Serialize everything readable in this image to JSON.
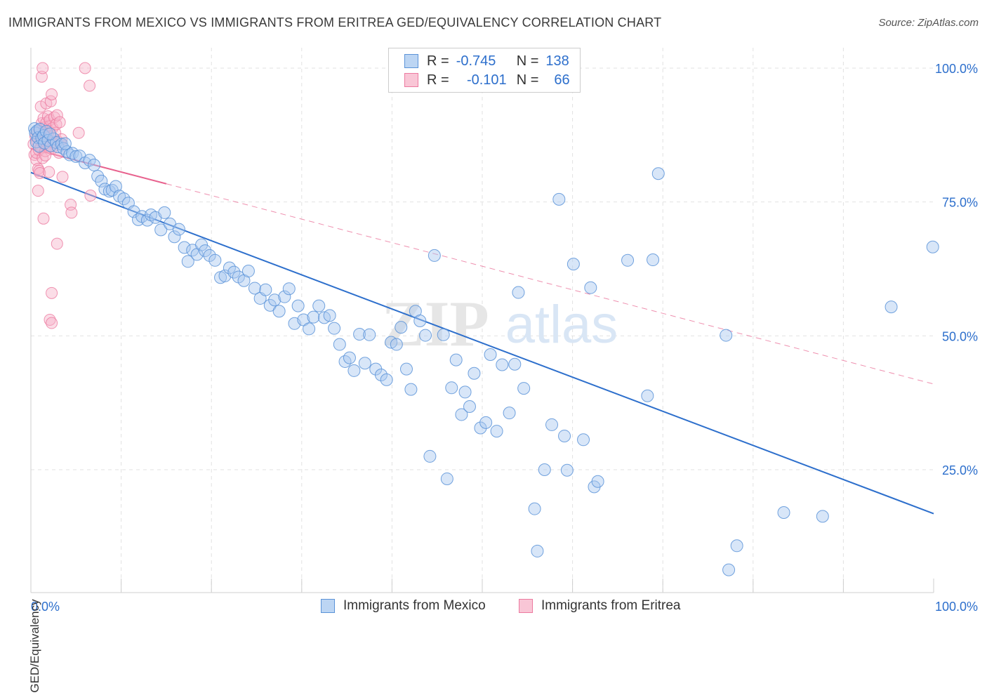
{
  "title": "IMMIGRANTS FROM MEXICO VS IMMIGRANTS FROM ERITREA GED/EQUIVALENCY CORRELATION CHART",
  "source": "Source: ZipAtlas.com",
  "watermark": {
    "zip": "ZIP",
    "atlas": "atlas"
  },
  "legend_top": {
    "r_label": "R =",
    "n_label": "N =",
    "rows": [
      {
        "name": "Immigrants from Mexico",
        "r": "-0.745",
        "n": "138"
      },
      {
        "name": "Immigrants from Eritrea",
        "r": "-0.101",
        "n": "66"
      }
    ]
  },
  "bottom_legend": [
    "Immigrants from Mexico",
    "Immigrants from Eritrea"
  ],
  "colors": {
    "mexico_fill": "#a9c8ef",
    "mexico_stroke": "#5b93d8",
    "mexico_line": "#2d6fcc",
    "eritrea_fill": "#f7b3c9",
    "eritrea_stroke": "#ec7aa0",
    "eritrea_line": "#e8628e",
    "axis_text": "#2d6fcc",
    "grid": "#e2e2e2"
  },
  "chart_data": {
    "type": "scatter",
    "title": "IMMIGRANTS FROM MEXICO VS IMMIGRANTS FROM ERITREA GED/EQUIVALENCY CORRELATION CHART",
    "xlabel": "",
    "ylabel": "GED/Equivalency",
    "xlim": [
      0,
      100
    ],
    "ylim": [
      0,
      102
    ],
    "x_tick_labels": [
      {
        "value": 0,
        "label": "0.0%"
      },
      {
        "value": 100,
        "label": "100.0%"
      }
    ],
    "y_tick_labels": [
      {
        "value": 100,
        "label": "100.0%"
      },
      {
        "value": 75,
        "label": "75.0%"
      },
      {
        "value": 50,
        "label": "50.0%"
      },
      {
        "value": 25,
        "label": "25.0%"
      }
    ],
    "x_minor_ticks": [
      0,
      10,
      20,
      30,
      40,
      50,
      60,
      70,
      80,
      90,
      100
    ],
    "grid": true,
    "legend_position": "top-center",
    "series": [
      {
        "name": "Immigrants from Mexico",
        "r": -0.745,
        "n": 138,
        "trend": {
          "x": [
            0,
            100
          ],
          "y": [
            80.5,
            16.8
          ],
          "style": "solid"
        },
        "points": [
          [
            0.4,
            88.7
          ],
          [
            0.5,
            87.9
          ],
          [
            0.6,
            86.2
          ],
          [
            0.7,
            88.3
          ],
          [
            0.8,
            87.0
          ],
          [
            0.9,
            85.4
          ],
          [
            1.0,
            88.6
          ],
          [
            1.2,
            86.9
          ],
          [
            1.4,
            87.4
          ],
          [
            1.5,
            86.0
          ],
          [
            1.7,
            88.2
          ],
          [
            1.9,
            86.5
          ],
          [
            2.2,
            85.5
          ],
          [
            2.5,
            86.8
          ],
          [
            2.8,
            86.1
          ],
          [
            3.0,
            85.3
          ],
          [
            3.4,
            85.8
          ],
          [
            3.6,
            85.0
          ],
          [
            4.0,
            84.4
          ],
          [
            4.3,
            83.8
          ],
          [
            4.6,
            84.1
          ],
          [
            5.0,
            83.5
          ],
          [
            5.4,
            83.6
          ],
          [
            6.0,
            82.3
          ],
          [
            6.5,
            82.8
          ],
          [
            7.0,
            81.9
          ],
          [
            7.4,
            79.8
          ],
          [
            7.8,
            78.9
          ],
          [
            8.2,
            77.4
          ],
          [
            8.7,
            77.0
          ],
          [
            9.0,
            77.2
          ],
          [
            9.4,
            77.9
          ],
          [
            9.8,
            76.1
          ],
          [
            10.3,
            75.6
          ],
          [
            10.8,
            74.8
          ],
          [
            11.4,
            73.2
          ],
          [
            11.9,
            71.7
          ],
          [
            12.3,
            72.3
          ],
          [
            12.9,
            71.6
          ],
          [
            13.3,
            72.6
          ],
          [
            13.8,
            72.1
          ],
          [
            14.4,
            69.8
          ],
          [
            14.8,
            73.0
          ],
          [
            15.4,
            70.9
          ],
          [
            15.9,
            68.5
          ],
          [
            16.4,
            69.9
          ],
          [
            17.0,
            66.5
          ],
          [
            17.4,
            63.9
          ],
          [
            17.9,
            66.0
          ],
          [
            18.4,
            65.2
          ],
          [
            18.9,
            67.0
          ],
          [
            19.3,
            65.9
          ],
          [
            19.8,
            65.0
          ],
          [
            20.4,
            64.1
          ],
          [
            21.0,
            60.9
          ],
          [
            21.5,
            61.2
          ],
          [
            22.0,
            62.7
          ],
          [
            22.5,
            61.9
          ],
          [
            23.0,
            61.0
          ],
          [
            23.6,
            60.3
          ],
          [
            24.1,
            62.1
          ],
          [
            24.8,
            58.9
          ],
          [
            25.4,
            57.0
          ],
          [
            26.0,
            58.6
          ],
          [
            26.5,
            55.7
          ],
          [
            27.0,
            56.7
          ],
          [
            27.5,
            54.6
          ],
          [
            28.1,
            57.3
          ],
          [
            28.6,
            58.8
          ],
          [
            29.2,
            52.3
          ],
          [
            29.6,
            55.6
          ],
          [
            30.2,
            53.0
          ],
          [
            30.8,
            51.3
          ],
          [
            31.3,
            53.5
          ],
          [
            31.9,
            55.6
          ],
          [
            32.5,
            53.4
          ],
          [
            33.1,
            53.8
          ],
          [
            33.6,
            51.4
          ],
          [
            34.2,
            48.4
          ],
          [
            34.8,
            45.2
          ],
          [
            35.3,
            45.9
          ],
          [
            35.8,
            43.5
          ],
          [
            36.4,
            50.3
          ],
          [
            37.0,
            44.9
          ],
          [
            37.5,
            50.2
          ],
          [
            38.2,
            43.8
          ],
          [
            38.8,
            42.7
          ],
          [
            39.4,
            41.8
          ],
          [
            39.9,
            48.8
          ],
          [
            40.5,
            48.4
          ],
          [
            41.0,
            51.6
          ],
          [
            41.6,
            43.8
          ],
          [
            42.1,
            40.0
          ],
          [
            42.6,
            54.6
          ],
          [
            43.1,
            52.8
          ],
          [
            43.7,
            50.1
          ],
          [
            44.2,
            27.5
          ],
          [
            44.7,
            65.0
          ],
          [
            45.7,
            50.2
          ],
          [
            46.1,
            23.3
          ],
          [
            46.6,
            40.3
          ],
          [
            47.1,
            45.5
          ],
          [
            47.7,
            35.3
          ],
          [
            48.1,
            39.5
          ],
          [
            48.6,
            36.8
          ],
          [
            49.1,
            43.0
          ],
          [
            49.8,
            32.8
          ],
          [
            50.4,
            33.8
          ],
          [
            50.9,
            46.5
          ],
          [
            51.6,
            32.2
          ],
          [
            52.2,
            44.6
          ],
          [
            53.0,
            35.6
          ],
          [
            53.6,
            44.7
          ],
          [
            54.0,
            58.1
          ],
          [
            54.6,
            40.2
          ],
          [
            55.8,
            17.7
          ],
          [
            56.1,
            9.8
          ],
          [
            56.9,
            25.0
          ],
          [
            57.7,
            33.4
          ],
          [
            58.5,
            75.5
          ],
          [
            59.1,
            31.3
          ],
          [
            59.4,
            24.9
          ],
          [
            60.1,
            63.4
          ],
          [
            61.2,
            30.6
          ],
          [
            62.0,
            59.0
          ],
          [
            62.4,
            21.8
          ],
          [
            62.8,
            22.8
          ],
          [
            66.1,
            64.1
          ],
          [
            68.3,
            38.8
          ],
          [
            68.9,
            64.2
          ],
          [
            69.5,
            80.3
          ],
          [
            77.0,
            50.1
          ],
          [
            77.3,
            6.3
          ],
          [
            78.2,
            10.8
          ],
          [
            83.4,
            17.0
          ],
          [
            87.7,
            16.3
          ],
          [
            95.3,
            55.4
          ],
          [
            99.9,
            66.6
          ],
          [
            2.1,
            87.7
          ],
          [
            3.8,
            85.9
          ]
        ]
      },
      {
        "name": "Immigrants from Eritrea",
        "r": -0.101,
        "n": 66,
        "trend": {
          "x": [
            0,
            100
          ],
          "y": [
            85.0,
            41.0
          ],
          "style": "solid-then-dashed",
          "solid_until_x": 15
        },
        "points": [
          [
            0.3,
            85.8
          ],
          [
            0.4,
            83.8
          ],
          [
            0.5,
            87.3
          ],
          [
            0.6,
            82.9
          ],
          [
            0.6,
            84.2
          ],
          [
            0.7,
            87.9
          ],
          [
            0.7,
            86.3
          ],
          [
            0.8,
            81.2
          ],
          [
            0.8,
            77.1
          ],
          [
            0.9,
            80.8
          ],
          [
            0.9,
            84.7
          ],
          [
            1.0,
            86.5
          ],
          [
            1.0,
            88.2
          ],
          [
            1.1,
            85.1
          ],
          [
            1.1,
            92.8
          ],
          [
            1.2,
            89.7
          ],
          [
            1.3,
            87.0
          ],
          [
            1.3,
            83.2
          ],
          [
            1.4,
            85.9
          ],
          [
            1.4,
            90.6
          ],
          [
            1.5,
            88.9
          ],
          [
            1.5,
            86.4
          ],
          [
            1.6,
            84.5
          ],
          [
            1.6,
            88.0
          ],
          [
            1.7,
            93.4
          ],
          [
            1.7,
            89.8
          ],
          [
            1.8,
            86.6
          ],
          [
            1.8,
            85.3
          ],
          [
            1.9,
            87.6
          ],
          [
            1.9,
            91.0
          ],
          [
            2.0,
            88.3
          ],
          [
            2.0,
            85.2
          ],
          [
            2.1,
            89.2
          ],
          [
            2.1,
            90.3
          ],
          [
            2.2,
            93.8
          ],
          [
            2.2,
            87.3
          ],
          [
            2.3,
            95.1
          ],
          [
            2.3,
            84.9
          ],
          [
            2.4,
            88.8
          ],
          [
            2.5,
            86.1
          ],
          [
            2.6,
            90.8
          ],
          [
            2.7,
            87.9
          ],
          [
            2.8,
            89.5
          ],
          [
            2.9,
            91.2
          ],
          [
            3.0,
            86.3
          ],
          [
            3.1,
            84.2
          ],
          [
            3.2,
            89.9
          ],
          [
            3.3,
            85.8
          ],
          [
            3.4,
            86.7
          ],
          [
            3.5,
            79.7
          ],
          [
            1.2,
            98.4
          ],
          [
            1.3,
            100.0
          ],
          [
            6.0,
            100.0
          ],
          [
            6.5,
            96.7
          ],
          [
            5.3,
            87.9
          ],
          [
            6.6,
            76.2
          ],
          [
            4.4,
            74.5
          ],
          [
            4.5,
            73.0
          ],
          [
            1.4,
            71.9
          ],
          [
            2.9,
            67.2
          ],
          [
            2.3,
            58.0
          ],
          [
            2.1,
            53.0
          ],
          [
            2.3,
            52.4
          ],
          [
            1.0,
            80.4
          ],
          [
            2.0,
            80.6
          ],
          [
            1.6,
            83.7
          ]
        ]
      }
    ]
  }
}
